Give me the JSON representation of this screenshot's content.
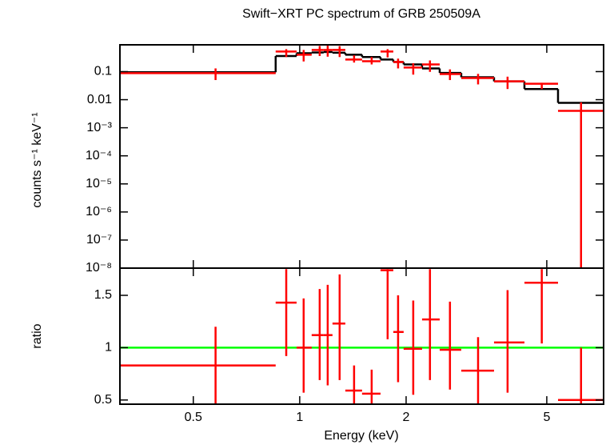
{
  "chart_data": [
    {
      "type": "spectrum",
      "title": "Swift−XRT PC spectrum of GRB 250509A",
      "ylabel": "counts s⁻¹ keV⁻¹",
      "log_x": true,
      "log_y": true,
      "xlim": [
        0.31,
        7.24
      ],
      "ylim": [
        1e-08,
        0.9
      ],
      "yticks": [
        0.1,
        0.01,
        {
          "value": 0.001,
          "label": "10⁻³"
        },
        {
          "value": 0.0001,
          "label": "10⁻⁴"
        },
        {
          "value": 1e-05,
          "label": "10⁻⁵"
        },
        {
          "value": 1e-06,
          "label": "10⁻⁶"
        },
        {
          "value": 1e-07,
          "label": "10⁻⁷"
        },
        {
          "value": 1e-08,
          "label": "10⁻⁸"
        }
      ],
      "bins": [
        0.31,
        0.855,
        0.98,
        1.081,
        1.169,
        1.238,
        1.346,
        1.501,
        1.693,
        1.84,
        1.968,
        2.219,
        2.489,
        2.864,
        3.546,
        4.323,
        5.38,
        7.24
      ],
      "x": [
        0.578,
        0.916,
        1.026,
        1.139,
        1.2,
        1.297,
        1.425,
        1.598,
        1.773,
        1.898,
        2.095,
        2.336,
        2.661,
        3.196,
        3.873,
        4.84,
        6.25
      ],
      "values": [
        0.088,
        0.52,
        0.4,
        0.59,
        0.59,
        0.59,
        0.27,
        0.235,
        0.52,
        0.22,
        0.14,
        0.18,
        0.082,
        0.059,
        0.045,
        0.037,
        0.004
      ],
      "err_low": [
        0.05,
        0.33,
        0.23,
        0.36,
        0.34,
        0.33,
        0.21,
        0.18,
        0.32,
        0.13,
        0.078,
        0.098,
        0.05,
        0.035,
        0.024,
        0.024,
        1e-09
      ],
      "err_high": [
        0.13,
        0.63,
        0.59,
        0.82,
        0.84,
        0.81,
        0.38,
        0.33,
        0.63,
        0.29,
        0.2,
        0.25,
        0.12,
        0.083,
        0.066,
        0.04,
        0.008
      ],
      "model": [
        0.095,
        0.36,
        0.45,
        0.48,
        0.5,
        0.47,
        0.4,
        0.33,
        0.27,
        0.22,
        0.18,
        0.13,
        0.09,
        0.063,
        0.045,
        0.024,
        0.0077
      ],
      "data_color": "#ff0000",
      "model_color": "#000000"
    },
    {
      "type": "ratio",
      "ylabel": "ratio",
      "xlabel": "Energy (keV)",
      "log_x": true,
      "xlim": [
        0.31,
        7.24
      ],
      "ylim": [
        0.46,
        1.76
      ],
      "xticks": [
        0.5,
        1,
        2,
        5
      ],
      "yticks": [
        0.5,
        1,
        1.5
      ],
      "bins": [
        0.31,
        0.855,
        0.98,
        1.081,
        1.169,
        1.238,
        1.346,
        1.501,
        1.693,
        1.84,
        1.968,
        2.219,
        2.489,
        2.864,
        3.546,
        4.323,
        5.38,
        7.24
      ],
      "x": [
        0.578,
        0.916,
        1.026,
        1.139,
        1.2,
        1.297,
        1.425,
        1.598,
        1.773,
        1.898,
        2.095,
        2.336,
        2.661,
        3.196,
        3.873,
        4.84,
        6.25
      ],
      "values": [
        0.83,
        1.43,
        1.0,
        1.12,
        1.12,
        1.23,
        0.59,
        0.56,
        1.74,
        1.15,
        0.99,
        1.27,
        0.98,
        0.78,
        1.05,
        1.62,
        0.5
      ],
      "err_low": [
        0.45,
        0.92,
        0.57,
        0.69,
        0.64,
        0.69,
        0.45,
        0.45,
        1.08,
        0.67,
        0.55,
        0.69,
        0.6,
        0.45,
        0.57,
        1.04,
        0.45
      ],
      "err_high": [
        1.2,
        1.75,
        1.47,
        1.56,
        1.6,
        1.7,
        0.83,
        0.79,
        1.75,
        1.5,
        1.45,
        1.75,
        1.44,
        1.1,
        1.55,
        1.75,
        1.0
      ],
      "reference": 1,
      "reference_color": "#00ff00",
      "data_color": "#ff0000"
    }
  ]
}
